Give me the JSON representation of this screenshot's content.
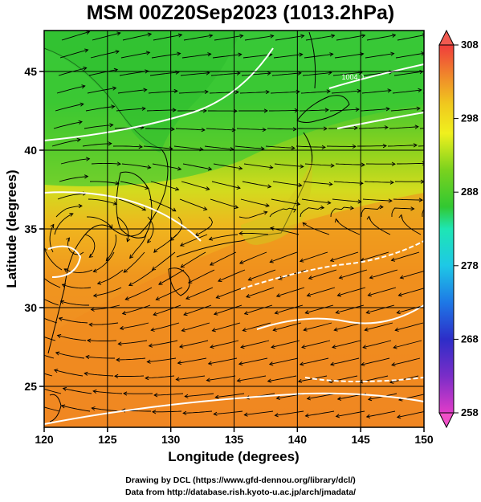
{
  "title": "MSM 00Z20Sep2023 (1013.2hPa)",
  "credits": {
    "line1": "Drawing by DCL (https://www.gfd-dennou.org/library/dcl/)",
    "line2": "Data from http://database.rish.kyoto-u.ac.jp/arch/jmadata/"
  },
  "map": {
    "x_axis": {
      "label": "Longitude (degrees)",
      "range": [
        120,
        150
      ],
      "ticks": [
        120,
        125,
        130,
        135,
        140,
        145,
        150
      ]
    },
    "y_axis": {
      "label": "Latitude  (degrees)",
      "range": [
        22.4,
        47.6
      ],
      "ticks": [
        25,
        30,
        35,
        40,
        45
      ]
    },
    "grid": true,
    "field": "temperature",
    "overlays": [
      "streamlines",
      "isobars",
      "coastlines"
    ],
    "isobar_labels": [
      {
        "text": "1004.0",
        "lon": 143.5,
        "lat": 44.5
      }
    ],
    "colors": {
      "cool_north": "#2fc82f",
      "warm_south": "#f08a1e",
      "isobar": "#ffffff",
      "streamline": "#000000"
    }
  },
  "colorbar": {
    "ticks": [
      308,
      298,
      288,
      278,
      268,
      258
    ],
    "min": 258,
    "max": 308,
    "colors": [
      "#e03cc8",
      "#7a2dc8",
      "#2d2dc8",
      "#1e78e6",
      "#1ec8e6",
      "#1ee6b4",
      "#32c832",
      "#7ad21e",
      "#c8e61e",
      "#f0f01e",
      "#f0c81e",
      "#f09628",
      "#f06428",
      "#f03c3c"
    ],
    "top_triangle_color": "#f05a50",
    "bottom_triangle_color": "#f050c8"
  }
}
